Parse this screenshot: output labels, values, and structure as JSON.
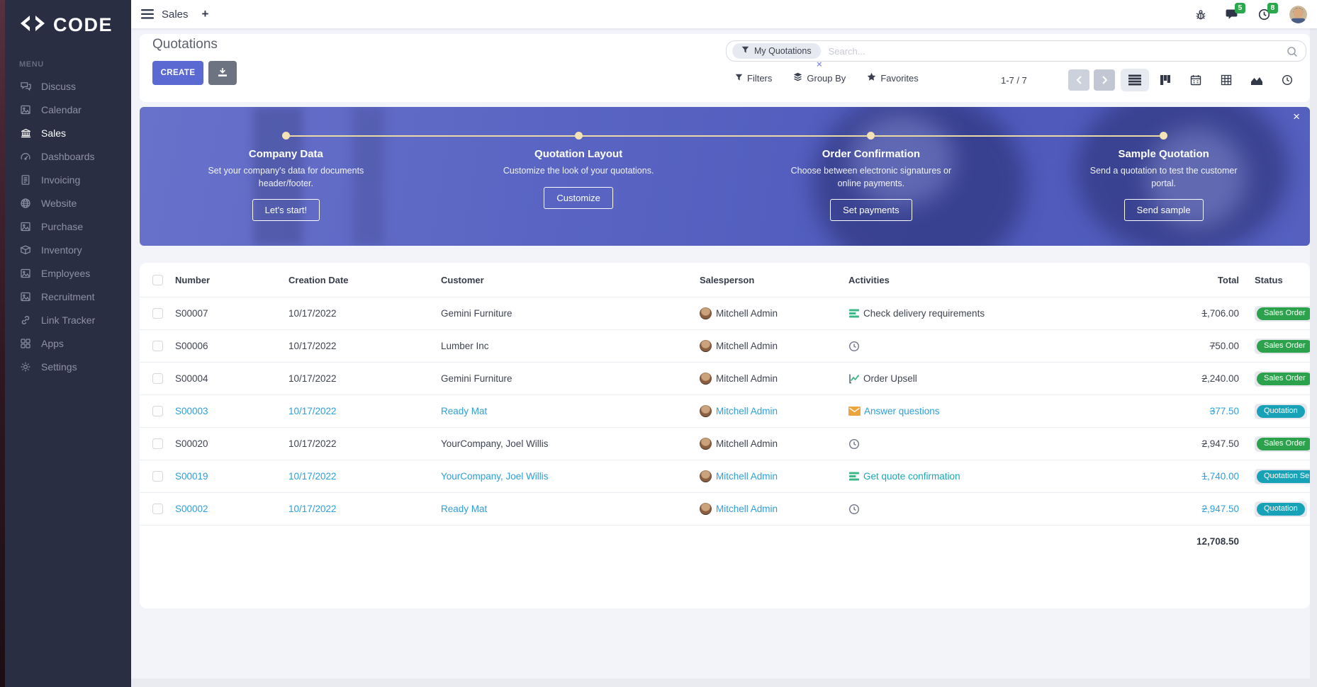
{
  "sidebar": {
    "logo_text": "CODE",
    "menu_label": "MENU",
    "items": [
      {
        "label": "Discuss",
        "icon": "chat-icon"
      },
      {
        "label": "Calendar",
        "icon": "image-icon"
      },
      {
        "label": "Sales",
        "icon": "bank-icon",
        "active": true
      },
      {
        "label": "Dashboards",
        "icon": "gauge-icon"
      },
      {
        "label": "Invoicing",
        "icon": "invoice-icon"
      },
      {
        "label": "Website",
        "icon": "globe-icon"
      },
      {
        "label": "Purchase",
        "icon": "image-icon"
      },
      {
        "label": "Inventory",
        "icon": "box-icon"
      },
      {
        "label": "Employees",
        "icon": "image-icon"
      },
      {
        "label": "Recruitment",
        "icon": "image-icon"
      },
      {
        "label": "Link Tracker",
        "icon": "link-icon"
      },
      {
        "label": "Apps",
        "icon": "grid-icon"
      },
      {
        "label": "Settings",
        "icon": "gear-icon"
      }
    ]
  },
  "topbar": {
    "app": "Sales",
    "new_tab": "+",
    "messages_count": "5",
    "activities_count": "8"
  },
  "control_panel": {
    "title": "Quotations",
    "create_label": "CREATE",
    "facet": "My Quotations",
    "facet_remove": "×",
    "search_placeholder": "Search...",
    "filters_label": "Filters",
    "group_by_label": "Group By",
    "favorites_label": "Favorites",
    "pager": "1-7 / 7",
    "views": [
      {
        "name": "list",
        "active": true
      },
      {
        "name": "kanban"
      },
      {
        "name": "calendar"
      },
      {
        "name": "pivot"
      },
      {
        "name": "graph"
      },
      {
        "name": "activity"
      }
    ]
  },
  "banner": {
    "close": "×",
    "steps": [
      {
        "title": "Company Data",
        "description": "Set your company's data for documents header/footer.",
        "button": "Let's start!"
      },
      {
        "title": "Quotation Layout",
        "description": "Customize the look of your quotations.",
        "button": "Customize"
      },
      {
        "title": "Order Confirmation",
        "description": "Choose between electronic signatures or online payments.",
        "button": "Set payments"
      },
      {
        "title": "Sample Quotation",
        "description": "Send a quotation to test the customer portal.",
        "button": "Send sample"
      }
    ]
  },
  "table": {
    "headers": [
      "Number",
      "Creation Date",
      "Customer",
      "Salesperson",
      "Activities",
      "Total",
      "Status"
    ],
    "rows": [
      {
        "number": "S00007",
        "creation_date": "10/17/2022",
        "customer": "Gemini Furniture",
        "salesperson": "Mitchell Admin",
        "activity": {
          "icon": "tasks-icon",
          "label": "Check delivery requirements"
        },
        "total": "1,706.00",
        "status": "Sales Order",
        "status_variant": "success",
        "highlighted": false
      },
      {
        "number": "S00006",
        "creation_date": "10/17/2022",
        "customer": "Lumber Inc",
        "salesperson": "Mitchell Admin",
        "activity": {
          "icon": "clock-icon",
          "label": ""
        },
        "total": "750.00",
        "status": "Sales Order",
        "status_variant": "success",
        "highlighted": false
      },
      {
        "number": "S00004",
        "creation_date": "10/17/2022",
        "customer": "Gemini Furniture",
        "salesperson": "Mitchell Admin",
        "activity": {
          "icon": "chart-icon",
          "label": "Order Upsell"
        },
        "total": "2,240.00",
        "status": "Sales Order",
        "status_variant": "success",
        "highlighted": false
      },
      {
        "number": "S00003",
        "creation_date": "10/17/2022",
        "customer": "Ready Mat",
        "salesperson": "Mitchell Admin",
        "activity": {
          "icon": "envelope-icon",
          "label": "Answer questions"
        },
        "total": "377.50",
        "status": "Quotation",
        "status_variant": "info",
        "highlighted": true
      },
      {
        "number": "S00020",
        "creation_date": "10/17/2022",
        "customer": "YourCompany, Joel Willis",
        "salesperson": "Mitchell Admin",
        "activity": {
          "icon": "clock-icon",
          "label": ""
        },
        "total": "2,947.50",
        "status": "Sales Order",
        "status_variant": "success",
        "highlighted": false
      },
      {
        "number": "S00019",
        "creation_date": "10/17/2022",
        "customer": "YourCompany, Joel Willis",
        "salesperson": "Mitchell Admin",
        "activity": {
          "icon": "tasks-icon",
          "label": "Get quote confirmation",
          "label_color": "teal"
        },
        "total": "1,740.00",
        "status": "Quotation Sent",
        "status_variant": "info",
        "highlighted": true
      },
      {
        "number": "S00002",
        "creation_date": "10/17/2022",
        "customer": "Ready Mat",
        "salesperson": "Mitchell Admin",
        "activity": {
          "icon": "clock-icon",
          "label": ""
        },
        "total": "2,947.50",
        "status": "Quotation",
        "status_variant": "info",
        "highlighted": true
      }
    ],
    "footer_total": "12,708.50"
  },
  "colors": {
    "accent": "#5b69d2",
    "sidebar_bg": "#2a2e43",
    "status_green": "#2ba24b",
    "status_teal": "#18a2b8",
    "row_highlight_blue": "#2e9fd8",
    "activity_green": "#3cb886",
    "activity_orange": "#eaa53e",
    "banner_line_cream": "#ecd9a8",
    "badge_count_green": "#2ba84d"
  }
}
